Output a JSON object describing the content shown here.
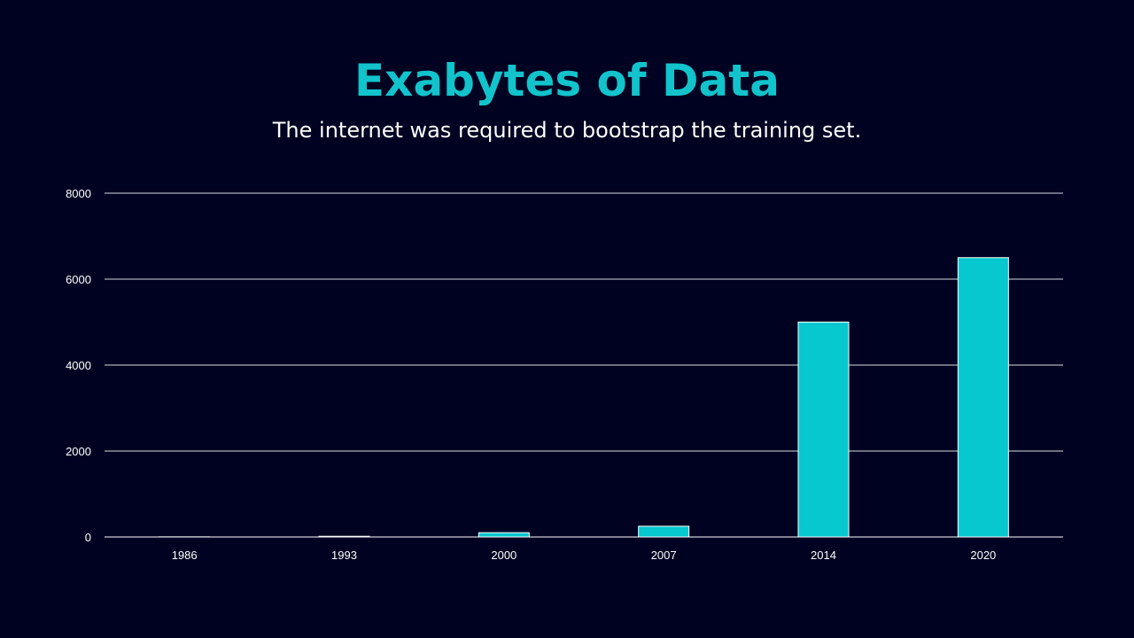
{
  "slide": {
    "title": "Exabytes of Data",
    "subtitle": "The internet was required to bootstrap the training set."
  },
  "colors": {
    "background": "#000222",
    "title": "#12C3CB",
    "bar": "#06C8CE",
    "bar_border": "#ffffff",
    "grid": "#ffffff",
    "text": "#ffffff"
  },
  "chart_data": {
    "type": "bar",
    "categories": [
      "1986",
      "1993",
      "2000",
      "2007",
      "2014",
      "2020"
    ],
    "values": [
      3,
      16,
      100,
      250,
      5000,
      6500
    ],
    "ylim": [
      0,
      8000
    ],
    "yticks": [
      0,
      2000,
      4000,
      6000,
      8000
    ],
    "ytick_labels": [
      "0",
      "2000",
      "4000",
      "6000",
      "8000"
    ],
    "xlabel": "",
    "ylabel": "",
    "grid": true,
    "legend": "none"
  }
}
